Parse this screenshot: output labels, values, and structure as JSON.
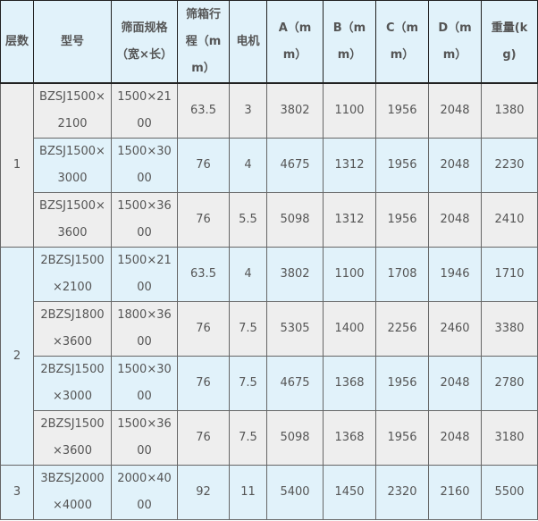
{
  "headers": [
    "层数",
    "型号",
    "筛面规格（宽×长）",
    "筛箱行程（mm）",
    "电机",
    "A（mm）",
    "B（mm）",
    "C（mm）",
    "D（mm）",
    "重量(kg)"
  ],
  "groups": [
    {
      "layer": "1",
      "rows": [
        [
          "BZSJ1500×2100",
          "1500×2100",
          "63.5",
          "3",
          "3802",
          "1100",
          "1956",
          "2048",
          "1380"
        ],
        [
          "BZSJ1500×3000",
          "1500×3000",
          "76",
          "4",
          "4675",
          "1312",
          "1956",
          "2048",
          "2230"
        ],
        [
          "BZSJ1500×3600",
          "1500×3600",
          "76",
          "5.5",
          "5098",
          "1312",
          "1956",
          "2048",
          "2410"
        ]
      ]
    },
    {
      "layer": "2",
      "rows": [
        [
          "2BZSJ1500×2100",
          "1500×2100",
          "63.5",
          "4",
          "3802",
          "1100",
          "1708",
          "1946",
          "1710"
        ],
        [
          "2BZSJ1800×3600",
          "1800×3600",
          "76",
          "7.5",
          "5305",
          "1400",
          "2256",
          "2460",
          "3380"
        ],
        [
          "2BZSJ1500×3000",
          "1500×3000",
          "76",
          "7.5",
          "4675",
          "1368",
          "1956",
          "2048",
          "2780"
        ],
        [
          "2BZSJ1500×3600",
          "1500×3600",
          "76",
          "7.5",
          "5098",
          "1368",
          "1956",
          "2048",
          "3180"
        ]
      ]
    },
    {
      "layer": "3",
      "rows": [
        [
          "3BZSJ2000×4000",
          "2000×4000",
          "92",
          "11",
          "5400",
          "1450",
          "2320",
          "2160",
          "5500"
        ]
      ]
    }
  ],
  "colors": {
    "header_bg": "#e1f2fa",
    "row_gray": "#eeeeee",
    "row_blue": "#e1f2fa",
    "text": "#555555"
  }
}
